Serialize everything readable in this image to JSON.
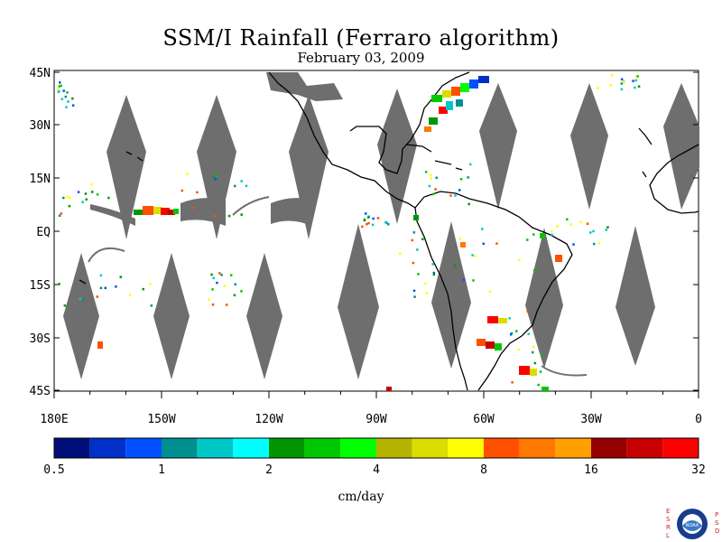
{
  "title": "SSM/I Rainfall (Ferraro algorithm)",
  "date": "February 03, 2009",
  "units": "cm/day",
  "lat_labels": [
    "45N",
    "30N",
    "15N",
    "EQ",
    "15S",
    "30S",
    "45S"
  ],
  "lon_labels": [
    "180E",
    "150W",
    "120W",
    "90W",
    "60W",
    "30W",
    "0"
  ],
  "colorbar": {
    "colors": [
      "#00107a",
      "#0030c8",
      "#0050ff",
      "#009090",
      "#00c8c8",
      "#00ffff",
      "#009600",
      "#00c800",
      "#00ff00",
      "#b4b400",
      "#dcdc00",
      "#ffff00",
      "#ff5000",
      "#ff7800",
      "#ffa000",
      "#960000",
      "#c80000",
      "#ff0000"
    ],
    "tick_labels": [
      "0.5",
      "1",
      "2",
      "4",
      "8",
      "16",
      "32"
    ]
  },
  "logo": {
    "letters_left": [
      "E",
      "S",
      "R",
      "L"
    ],
    "letters_right": [
      "P",
      "S",
      "D"
    ],
    "emblem": "NOAA"
  }
}
